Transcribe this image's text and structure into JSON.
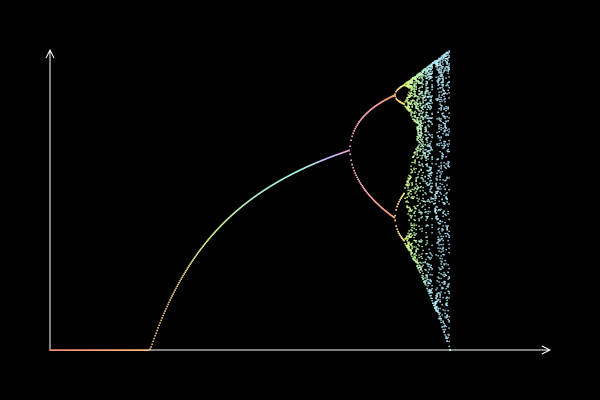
{
  "chart_data": {
    "type": "scatter",
    "title": "",
    "xlabel": "",
    "ylabel": "",
    "xlim": [
      0,
      4
    ],
    "ylim": [
      0,
      1
    ],
    "grid": false,
    "legend": "none",
    "x_ticks": [],
    "y_ticks": [],
    "series": [
      {
        "x_range": [
          0,
          4
        ],
        "description_hidden": true
      }
    ],
    "colors": {
      "background": "#000000",
      "axis": "#ffffff",
      "palette": [
        "#ff8a80",
        "#ffd180",
        "#e6ff9a",
        "#b9f6ca",
        "#a7ffeb",
        "#b3e5fc",
        "#c6b8ff",
        "#f8a5d8",
        "#ff9e80",
        "#ccff90",
        "#b2ebf2"
      ]
    }
  }
}
